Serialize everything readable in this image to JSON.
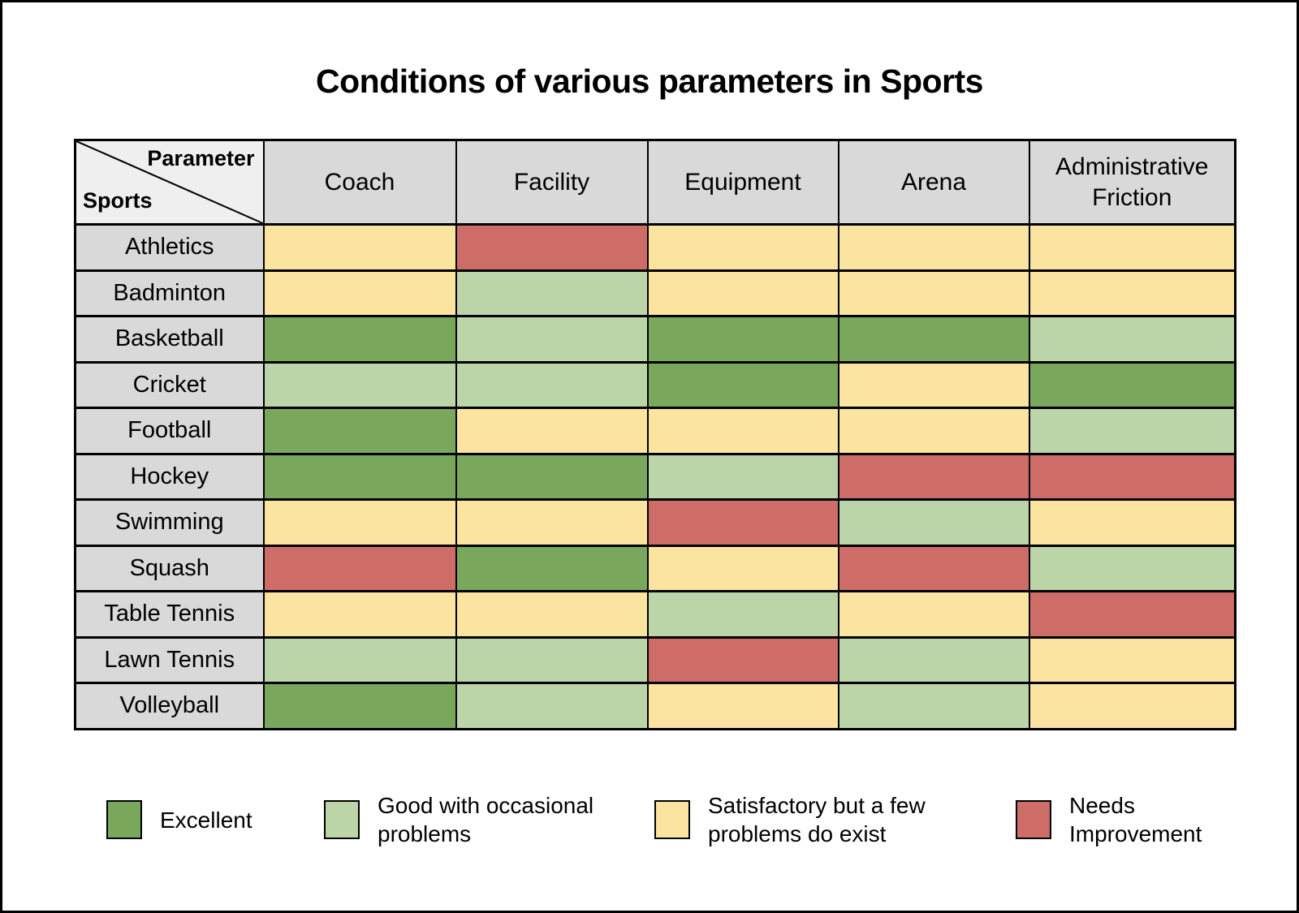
{
  "chart_data": {
    "type": "heatmap",
    "title": "Conditions of various parameters in Sports",
    "xlabel": "Parameter",
    "ylabel": "Sports",
    "columns": [
      "Coach",
      "Facility",
      "Equipment",
      "Arena",
      "Administrative Friction"
    ],
    "rows": [
      "Athletics",
      "Badminton",
      "Basketball",
      "Cricket",
      "Football",
      "Hockey",
      "Swimming",
      "Squash",
      "Table Tennis",
      "Lawn Tennis",
      "Volleyball"
    ],
    "values": [
      [
        "satisfactory",
        "needs_improvement",
        "satisfactory",
        "satisfactory",
        "satisfactory"
      ],
      [
        "satisfactory",
        "good",
        "satisfactory",
        "satisfactory",
        "satisfactory"
      ],
      [
        "excellent",
        "good",
        "excellent",
        "excellent",
        "good"
      ],
      [
        "good",
        "good",
        "excellent",
        "satisfactory",
        "excellent"
      ],
      [
        "excellent",
        "satisfactory",
        "satisfactory",
        "satisfactory",
        "good"
      ],
      [
        "excellent",
        "excellent",
        "good",
        "needs_improvement",
        "needs_improvement"
      ],
      [
        "satisfactory",
        "satisfactory",
        "needs_improvement",
        "good",
        "satisfactory"
      ],
      [
        "needs_improvement",
        "excellent",
        "satisfactory",
        "needs_improvement",
        "good"
      ],
      [
        "satisfactory",
        "satisfactory",
        "good",
        "satisfactory",
        "needs_improvement"
      ],
      [
        "good",
        "good",
        "needs_improvement",
        "good",
        "satisfactory"
      ],
      [
        "excellent",
        "good",
        "satisfactory",
        "good",
        "satisfactory"
      ]
    ],
    "legend": [
      {
        "value": "excellent",
        "label": "Excellent",
        "color": "#79A75B"
      },
      {
        "value": "good",
        "label": "Good with occasional problems",
        "color": "#BCD5A8"
      },
      {
        "value": "satisfactory",
        "label": "Satisfactory but a few problems do exist",
        "color": "#FAE49F"
      },
      {
        "value": "needs_improvement",
        "label": "Needs Improvement",
        "color": "#CE6D68"
      }
    ],
    "legend_position": "bottom"
  },
  "colors": {
    "header_bg": "#D9D9D9",
    "corner_bg": "#EFEFEF",
    "border": "#000000",
    "page_bg": "#FFFFFF"
  }
}
